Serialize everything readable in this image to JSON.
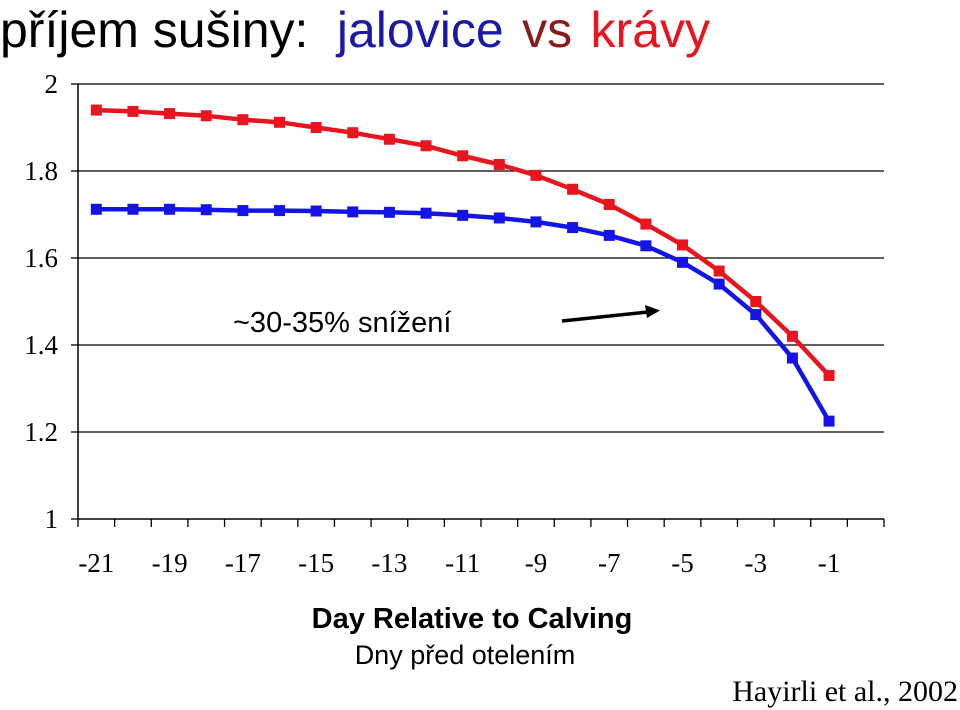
{
  "chart_data": {
    "type": "line",
    "title": {
      "part1": "příjem sušiny:",
      "part2": "jalovice",
      "part3": "vs",
      "part4": "krávy"
    },
    "xlabel": "Day Relative to Calving",
    "xlabel_secondary": "Dny před otelením",
    "ylabel": "",
    "x": [
      -21,
      -20,
      -19,
      -18,
      -17,
      -16,
      -15,
      -14,
      -13,
      -12,
      -11,
      -10,
      -9,
      -8,
      -7,
      -6,
      -5,
      -4,
      -3,
      -2,
      -1
    ],
    "xlim": [
      -21.5,
      0.5
    ],
    "ylim": [
      1,
      2
    ],
    "x_ticks": [
      -21,
      -19,
      -17,
      -15,
      -13,
      -11,
      -9,
      -7,
      -5,
      -3,
      -1
    ],
    "y_ticks": [
      1,
      1.2,
      1.4,
      1.6,
      1.8,
      2
    ],
    "y_tick_labels": [
      "1",
      "1.2",
      "1.4",
      "1.6",
      "1.8",
      "2"
    ],
    "grid": "horizontal",
    "legend": "none",
    "series": [
      {
        "color": "#e8141e",
        "values": [
          1.94,
          1.937,
          1.932,
          1.927,
          1.918,
          1.912,
          1.9,
          1.888,
          1.873,
          1.858,
          1.835,
          1.815,
          1.79,
          1.758,
          1.723,
          1.678,
          1.63,
          1.57,
          1.5,
          1.42,
          1.33
        ]
      },
      {
        "color": "#1414e8",
        "values": [
          1.712,
          1.712,
          1.712,
          1.711,
          1.709,
          1.709,
          1.708,
          1.706,
          1.705,
          1.703,
          1.698,
          1.692,
          1.683,
          1.67,
          1.652,
          1.628,
          1.59,
          1.54,
          1.47,
          1.37,
          1.225
        ]
      }
    ],
    "annotation": "~30-35% snížení",
    "credit": "Hayirli et al., 2002",
    "colors": {
      "title_black": "#000000",
      "title_blue": "#1a1aa6",
      "title_red": "#8b1a1a",
      "title_bright_red": "#e8141e",
      "grid": "#000000"
    }
  }
}
